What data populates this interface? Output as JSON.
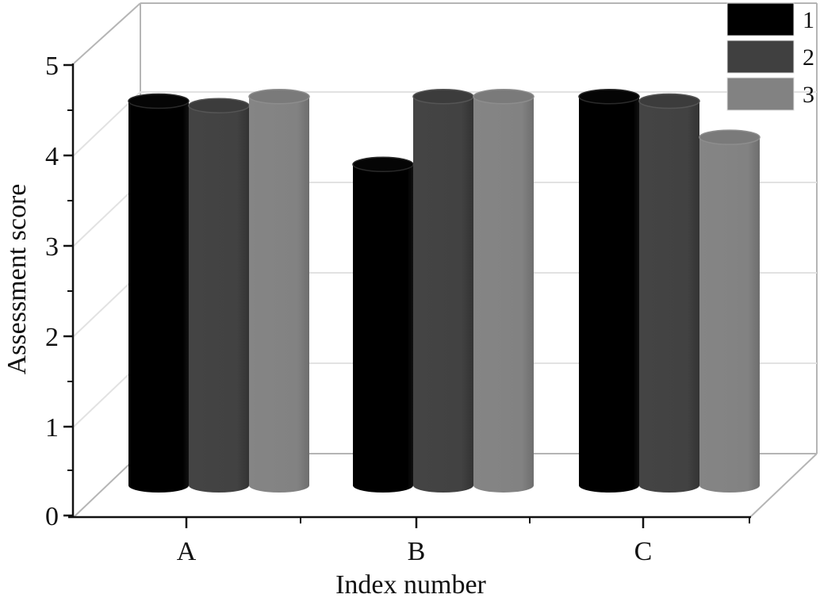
{
  "chart_data": {
    "type": "bar",
    "style": "3d-cylinder",
    "title": "",
    "xlabel": "Index number",
    "ylabel": "Assessment score",
    "categories": [
      "A",
      "B",
      "C"
    ],
    "series": [
      {
        "name": "1",
        "color": "#000000",
        "values": [
          4.25,
          3.55,
          4.3
        ]
      },
      {
        "name": "2",
        "color": "#404040",
        "values": [
          4.2,
          4.3,
          4.25
        ]
      },
      {
        "name": "3",
        "color": "#828282",
        "values": [
          4.3,
          4.3,
          3.85
        ]
      }
    ],
    "ylim": [
      0,
      5
    ],
    "yticks": [
      "0",
      "1",
      "2",
      "3",
      "4",
      "5"
    ],
    "grid": true,
    "legend_position": "top-right"
  }
}
